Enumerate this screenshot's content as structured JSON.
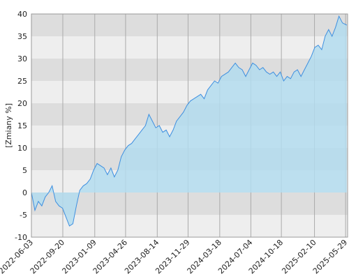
{
  "chart_data": {
    "type": "area",
    "y_label": "[Zmiany %]",
    "x": [
      "2022-06-03",
      "2022-06-15",
      "2022-06-27",
      "2022-07-09",
      "2022-07-21",
      "2022-08-02",
      "2022-08-14",
      "2022-08-26",
      "2022-09-07",
      "2022-09-19",
      "2022-10-01",
      "2022-10-13",
      "2022-10-25",
      "2022-11-06",
      "2022-11-18",
      "2022-11-30",
      "2022-12-12",
      "2022-12-24",
      "2023-01-05",
      "2023-01-17",
      "2023-01-29",
      "2023-02-10",
      "2023-02-22",
      "2023-03-06",
      "2023-03-18",
      "2023-03-30",
      "2023-04-11",
      "2023-04-23",
      "2023-05-05",
      "2023-05-17",
      "2023-05-29",
      "2023-06-10",
      "2023-06-22",
      "2023-07-04",
      "2023-07-16",
      "2023-07-28",
      "2023-08-09",
      "2023-08-21",
      "2023-09-02",
      "2023-09-14",
      "2023-09-26",
      "2023-10-08",
      "2023-10-20",
      "2023-11-01",
      "2023-11-13",
      "2023-11-25",
      "2023-12-07",
      "2023-12-19",
      "2023-12-31",
      "2024-01-12",
      "2024-01-24",
      "2024-02-05",
      "2024-02-17",
      "2024-02-29",
      "2024-03-12",
      "2024-03-24",
      "2024-04-05",
      "2024-04-17",
      "2024-04-29",
      "2024-05-11",
      "2024-05-23",
      "2024-06-04",
      "2024-06-16",
      "2024-06-28",
      "2024-07-10",
      "2024-07-22",
      "2024-08-03",
      "2024-08-15",
      "2024-08-27",
      "2024-09-08",
      "2024-09-20",
      "2024-10-02",
      "2024-10-14",
      "2024-10-26",
      "2024-11-07",
      "2024-11-19",
      "2024-12-01",
      "2024-12-13",
      "2024-12-25",
      "2025-01-06",
      "2025-01-18",
      "2025-01-30",
      "2025-02-11",
      "2025-02-23",
      "2025-03-07",
      "2025-03-19",
      "2025-03-31",
      "2025-04-12",
      "2025-04-24",
      "2025-05-06",
      "2025-05-18",
      "2025-06-02"
    ],
    "series": [
      {
        "color": "#3d8fe0",
        "fill": "#b3dcef",
        "values": [
          0,
          -4,
          -2,
          -3,
          -1,
          0,
          1.5,
          -2,
          -3,
          -3.5,
          -5.5,
          -7.5,
          -7,
          -3,
          0.5,
          1.5,
          2,
          3,
          5,
          6.5,
          6,
          5.5,
          4,
          5.5,
          3.5,
          5,
          8,
          9.5,
          10.5,
          11,
          12,
          13,
          14,
          15,
          17.5,
          16,
          14.5,
          15,
          13.5,
          14,
          12.5,
          14,
          16,
          17,
          18,
          19.5,
          20.5,
          21,
          21.5,
          22,
          21,
          23,
          24,
          25,
          24.5,
          26,
          26.5,
          27,
          28,
          29,
          28,
          27.5,
          26,
          27.5,
          29,
          28.5,
          27.5,
          28,
          27,
          26.5,
          27,
          26,
          27,
          25,
          26,
          25.5,
          27,
          27.5,
          26,
          27.5,
          29,
          30.5,
          32.5,
          33,
          32,
          35,
          36.5,
          35,
          37,
          39.5,
          38,
          37.5
        ]
      }
    ],
    "xlim": [
      "2022-06-03",
      "2025-06-05"
    ],
    "xticks": [
      "2022-06-03",
      "2022-09-20",
      "2023-01-09",
      "2023-04-26",
      "2023-08-14",
      "2023-11-29",
      "2024-03-18",
      "2024-07-04",
      "2024-10-18",
      "2025-02-10",
      "2025-05-29"
    ],
    "ylim": [
      -10,
      40
    ],
    "yticks": [
      -10,
      -5,
      0,
      5,
      10,
      15,
      20,
      25,
      30,
      35,
      40
    ],
    "grid": true
  }
}
